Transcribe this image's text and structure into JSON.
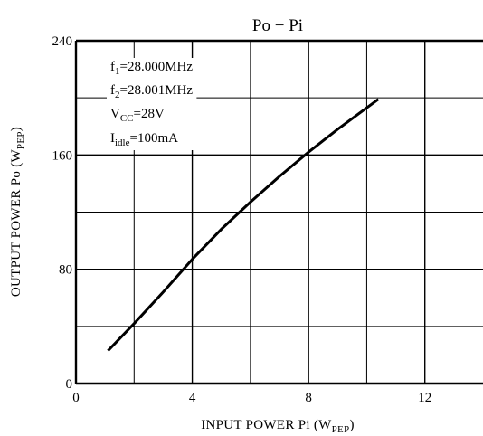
{
  "chart_data": {
    "type": "line",
    "title": "Po − Pi",
    "xlabel": {
      "main": "INPUT POWER   Pi   (W",
      "sub": "PEP",
      "close": ")"
    },
    "ylabel": {
      "main": "OUTPUT POWER   Po   (W",
      "sub": "PEP",
      "close": ")"
    },
    "xlim": [
      0,
      14
    ],
    "ylim": [
      0,
      240
    ],
    "xticks": [
      0,
      4,
      8,
      12
    ],
    "yticks": [
      0,
      80,
      160,
      240
    ],
    "xtick_labels": [
      "0",
      "4",
      "8",
      "12"
    ],
    "ytick_labels": [
      "0",
      "80",
      "160",
      "240"
    ],
    "grid": true,
    "conditions": [
      {
        "main": "f",
        "sub": "1",
        "rest": "=28.000MHz"
      },
      {
        "main": "f",
        "sub": "2",
        "rest": "=28.001MHz"
      },
      {
        "main": "V",
        "sub": "CC",
        "rest": "=28V"
      },
      {
        "main": "I",
        "sub": "idle",
        "rest": "=100mA"
      }
    ],
    "series": [
      {
        "x": [
          1.1,
          2.0,
          3.0,
          4.0,
          5.0,
          6.0,
          7.0,
          8.0,
          9.0,
          10.0,
          10.4
        ],
        "y": [
          23,
          42,
          64,
          87,
          108,
          127,
          145,
          162,
          178,
          193,
          199
        ]
      }
    ]
  }
}
